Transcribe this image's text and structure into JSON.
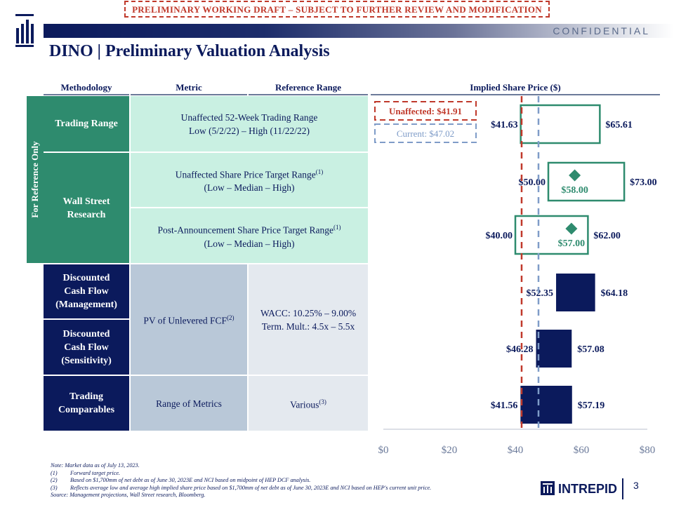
{
  "banner": "PRELIMINARY WORKING DRAFT – SUBJECT TO FURTHER REVIEW AND MODIFICATION",
  "confidential": "CONFIDENTIAL",
  "title": "DINO | Preliminary Valuation Analysis",
  "columns": {
    "methodology": "Methodology",
    "metric": "Metric",
    "reference_range": "Reference Range",
    "implied": "Implied Share Price ($)"
  },
  "side_label": "For Reference Only",
  "rows": {
    "trading_range": {
      "method": "Trading Range",
      "metric_line1": "Unaffected 52-Week Trading Range",
      "metric_line2": "Low (5/2/22) – High (11/22/22)"
    },
    "wall_street": {
      "method_line1": "Wall Street",
      "method_line2": "Research",
      "metric1_line1": "Unaffected Share Price Target Range",
      "metric1_sup": "(1)",
      "metric1_line2": "(Low –  Median – High)",
      "metric2_line1": "Post-Announcement Share Price Target Range",
      "metric2_sup": "(1)",
      "metric2_line2": "(Low – Median – High)"
    },
    "dcf_mgmt": {
      "line1": "Discounted",
      "line2": "Cash Flow",
      "line3": "(Management)"
    },
    "dcf_sens": {
      "line1": "Discounted",
      "line2": "Cash Flow",
      "line3": "(Sensitivity)"
    },
    "dcf_metric": "PV of Unlevered FCF",
    "dcf_metric_sup": "(2)",
    "dcf_ref_line1": "WACC: 10.25% – 9.00%",
    "dcf_ref_line2": "Term. Mult.: 4.5x – 5.5x",
    "comps": {
      "line1": "Trading",
      "line2": "Comparables",
      "metric": "Range of Metrics",
      "ref": "Various",
      "ref_sup": "(3)"
    }
  },
  "chart_data": {
    "type": "bar",
    "orientation": "horizontal-floating",
    "xlim": [
      0,
      80
    ],
    "x_ticks": [
      "$0",
      "$20",
      "$40",
      "$60",
      "$80"
    ],
    "reference_lines": [
      {
        "name": "Unaffected",
        "label": "Unaffected: $41.91",
        "value": 41.91,
        "color": "#c0392b",
        "style": "dashed"
      },
      {
        "name": "Current",
        "label": "Current:  $47.02",
        "value": 47.02,
        "color": "#7f9cc8",
        "style": "dashed"
      }
    ],
    "bars": [
      {
        "category": "Trading Range",
        "low": 41.63,
        "high": 65.61,
        "low_label": "$41.63",
        "high_label": "$65.61",
        "style": "outline-green"
      },
      {
        "category": "Unaffected Share Price Target Range",
        "low": 50.0,
        "high": 73.0,
        "median": 58.0,
        "low_label": "$50.00",
        "high_label": "$73.00",
        "median_label": "$58.00",
        "style": "outline-green"
      },
      {
        "category": "Post-Announcement Share Price Target Range",
        "low": 40.0,
        "high": 62.0,
        "median": 57.0,
        "low_label": "$40.00",
        "high_label": "$62.00",
        "median_label": "$57.00",
        "style": "outline-green"
      },
      {
        "category": "Discounted Cash Flow (Management)",
        "low": 52.35,
        "high": 64.18,
        "low_label": "$52.35",
        "high_label": "$64.18",
        "style": "solid-navy"
      },
      {
        "category": "Discounted Cash Flow (Sensitivity)",
        "low": 46.28,
        "high": 57.08,
        "low_label": "$46.28",
        "high_label": "$57.08",
        "style": "solid-navy"
      },
      {
        "category": "Trading Comparables",
        "low": 41.56,
        "high": 57.19,
        "low_label": "$41.56",
        "high_label": "$57.19",
        "style": "solid-navy"
      }
    ],
    "colors": {
      "navy": "#0b1a5c",
      "green": "#2e8b6e",
      "green_label": "#2e8b6e"
    }
  },
  "footnotes": {
    "note": "Note: Market data as of July 13, 2023.",
    "items": [
      {
        "num": "(1)",
        "text": "Forward target price."
      },
      {
        "num": "(2)",
        "text": "Based on $1,700mm of net debt as of June 30, 2023E and NCI based on midpoint of HEP DCF analysis."
      },
      {
        "num": "(3)",
        "text": "Reflects average low and average high implied share price based on $1,700mm of net debt as of June 30, 2023E and NCI based on HEP's current unit price."
      }
    ],
    "source": "Source: Management projections, Wall Street research, Bloomberg."
  },
  "brand": "INTREPID",
  "page_number": "3"
}
